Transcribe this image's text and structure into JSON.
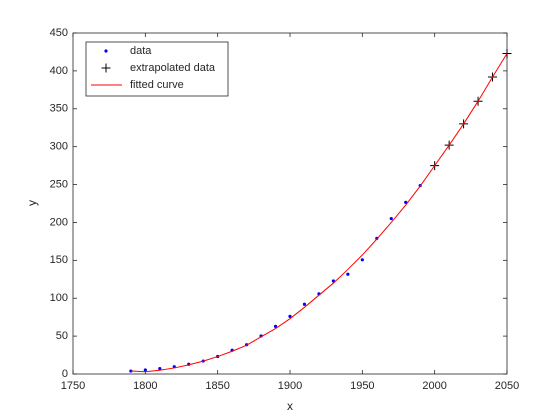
{
  "chart_data": {
    "type": "line",
    "x_label": "x",
    "y_label": "y",
    "xlim": [
      1750,
      2050
    ],
    "ylim": [
      0,
      450
    ],
    "xticks": [
      1750,
      1800,
      1850,
      1900,
      1950,
      2000,
      2050
    ],
    "yticks": [
      0,
      50,
      100,
      150,
      200,
      250,
      300,
      350,
      400,
      450
    ],
    "grid": false,
    "legend_position": "upper-left",
    "series": [
      {
        "name": "data",
        "color": "#0000ff",
        "marker": "dot",
        "x": [
          1790,
          1800,
          1810,
          1820,
          1830,
          1840,
          1850,
          1860,
          1870,
          1880,
          1890,
          1900,
          1910,
          1920,
          1930,
          1940,
          1950,
          1960,
          1970,
          1980,
          1990
        ],
        "values": [
          3.9,
          5.3,
          7.2,
          9.6,
          12.9,
          17.1,
          23.1,
          31.4,
          38.6,
          50.2,
          62.9,
          76.0,
          92.0,
          105.7,
          122.8,
          131.7,
          150.7,
          179.0,
          205.0,
          226.5,
          248.7
        ]
      },
      {
        "name": "extrapolated data",
        "color": "#000000",
        "marker": "plus",
        "x": [
          2000,
          2010,
          2020,
          2030,
          2040,
          2050
        ],
        "values": [
          275,
          302,
          330,
          360,
          392,
          423
        ]
      },
      {
        "name": "fitted curve",
        "color": "#ff0000",
        "marker": "none",
        "x": [
          1790,
          1800,
          1810,
          1820,
          1830,
          1840,
          1850,
          1860,
          1870,
          1880,
          1890,
          1900,
          1910,
          1920,
          1930,
          1940,
          1950,
          1960,
          1970,
          1980,
          1990,
          2000,
          2010,
          2020,
          2030,
          2040,
          2050
        ],
        "values": [
          4,
          3,
          5,
          8,
          12,
          17,
          23,
          30,
          38,
          49,
          60,
          73,
          88,
          104,
          120,
          138,
          157,
          178,
          200,
          223,
          248,
          275,
          302,
          330,
          360,
          392,
          423
        ]
      }
    ]
  }
}
